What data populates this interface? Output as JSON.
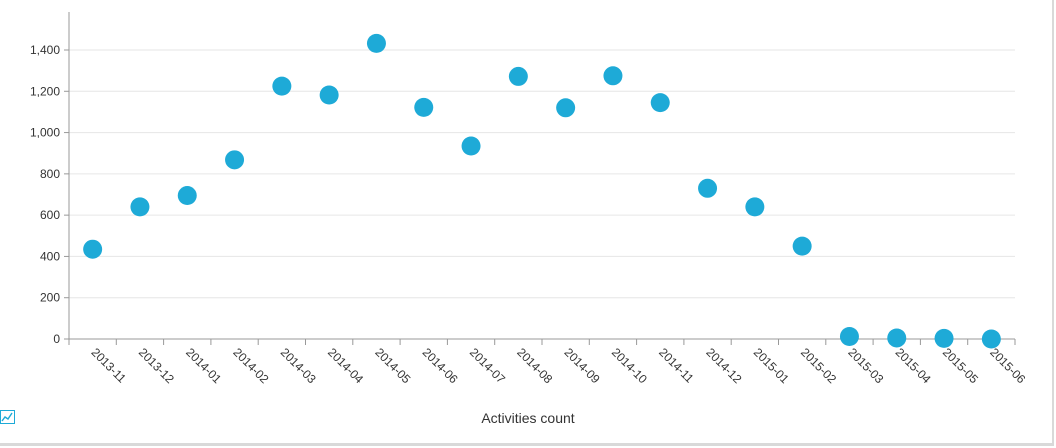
{
  "chart_data": {
    "type": "scatter",
    "categories": [
      "2013-11",
      "2013-12",
      "2014-01",
      "2014-02",
      "2014-03",
      "2014-04",
      "2014-05",
      "2014-06",
      "2014-07",
      "2014-08",
      "2014-09",
      "2014-10",
      "2014-11",
      "2014-12",
      "2015-01",
      "2015-02",
      "2015-03",
      "2015-04",
      "2015-05",
      "2015-06"
    ],
    "series": [
      {
        "name": "Activities count",
        "values": [
          435,
          640,
          695,
          868,
          1225,
          1182,
          1432,
          1122,
          935,
          1272,
          1120,
          1275,
          1145,
          730,
          640,
          450,
          12,
          5,
          3,
          0
        ],
        "color": "#1eaad7"
      }
    ],
    "y_ticks": [
      "0",
      "200",
      "400",
      "600",
      "800",
      "1,000",
      "1,200",
      "1,400"
    ],
    "ylim": [
      0,
      1580
    ],
    "grid": "horizontal",
    "legend_position": "bottom-center",
    "legend_icon": "line-chart-icon"
  }
}
